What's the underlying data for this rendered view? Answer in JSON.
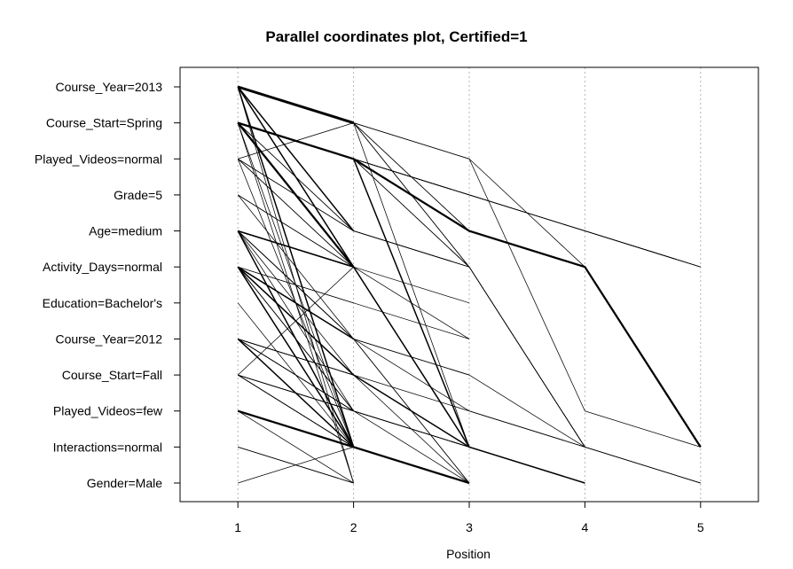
{
  "chart_data": {
    "type": "parallel-coordinates",
    "title": "Parallel coordinates plot, Certified=1",
    "xlabel": "Position",
    "ylabel": "",
    "xlim": [
      0.5,
      5.5
    ],
    "x_ticks": [
      1,
      2,
      3,
      4,
      5
    ],
    "y_categories": [
      "Course_Year=2013",
      "Course_Start=Spring",
      "Played_Videos=normal",
      "Grade=5",
      "Age=medium",
      "Activity_Days=normal",
      "Education=Bachelor's",
      "Course_Year=2012",
      "Course_Start=Fall",
      "Played_Videos=few",
      "Interactions=normal",
      "Gender=Male"
    ],
    "grid": {
      "vertical_dotted": true
    },
    "lines": [
      {
        "path": [
          0,
          1
        ],
        "weight": 4
      },
      {
        "path": [
          0,
          4
        ],
        "weight": 2
      },
      {
        "path": [
          0,
          5
        ],
        "weight": 2
      },
      {
        "path": [
          0,
          10
        ],
        "weight": 2
      },
      {
        "path": [
          0,
          11
        ],
        "weight": 1
      },
      {
        "path": [
          1,
          4
        ],
        "weight": 1
      },
      {
        "path": [
          1,
          5
        ],
        "weight": 1
      },
      {
        "path": [
          1,
          2
        ],
        "weight": 1
      },
      {
        "path": [
          2,
          5
        ],
        "weight": 1
      },
      {
        "path": [
          3,
          5
        ],
        "weight": 1
      },
      {
        "path": [
          3,
          7
        ],
        "weight": 1
      },
      {
        "path": [
          4,
          5
        ],
        "weight": 2
      },
      {
        "path": [
          4,
          7
        ],
        "weight": 1
      },
      {
        "path": [
          4,
          8
        ],
        "weight": 1
      },
      {
        "path": [
          5,
          7
        ],
        "weight": 2
      },
      {
        "path": [
          5,
          6
        ],
        "weight": 1
      },
      {
        "path": [
          5,
          9
        ],
        "weight": 1
      },
      {
        "path": [
          7,
          9
        ],
        "weight": 1
      },
      {
        "path": [
          7,
          8
        ],
        "weight": 1
      },
      {
        "path": [
          8,
          5
        ],
        "weight": 1
      },
      {
        "path": [
          8,
          9
        ],
        "weight": 1
      },
      {
        "path": [
          1,
          2,
          10,
          11
        ],
        "weight": 2
      },
      {
        "path": [
          1,
          5
        ],
        "weight": 3
      },
      {
        "path": [
          1,
          10,
          11
        ],
        "weight": 1
      },
      {
        "path": [
          1,
          11
        ],
        "weight": 1
      },
      {
        "path": [
          2,
          1,
          4
        ],
        "weight": 1
      },
      {
        "path": [
          3,
          5,
          10
        ],
        "weight": 1
      },
      {
        "path": [
          4,
          7,
          11
        ],
        "weight": 1
      },
      {
        "path": [
          4,
          5,
          7
        ],
        "weight": 1
      },
      {
        "path": [
          5,
          9
        ],
        "weight": 1
      },
      {
        "path": [
          5,
          8,
          11
        ],
        "weight": 1
      },
      {
        "path": [
          5,
          6,
          7
        ],
        "weight": 1
      },
      {
        "path": [
          7,
          9,
          10
        ],
        "weight": 1
      },
      {
        "path": [
          7,
          8,
          10
        ],
        "weight": 1
      },
      {
        "path": [
          8,
          10
        ],
        "weight": 1
      },
      {
        "path": [
          9,
          10,
          11
        ],
        "weight": 3
      },
      {
        "path": [
          10,
          11
        ],
        "weight": 1
      },
      {
        "path": [
          11,
          10
        ],
        "weight": 1
      },
      {
        "path": [
          4,
          10
        ],
        "weight": 2
      },
      {
        "path": [
          5,
          10
        ],
        "weight": 2
      },
      {
        "path": [
          2,
          10
        ],
        "weight": 1
      },
      {
        "path": [
          7,
          10
        ],
        "weight": 2
      },
      {
        "path": [
          9,
          11
        ],
        "weight": 1
      },
      {
        "path": [
          8,
          10,
          11
        ],
        "weight": 1
      },
      {
        "path": [
          2,
          4,
          5
        ],
        "weight": 1
      },
      {
        "path": [
          4,
          5,
          6
        ],
        "weight": 1
      },
      {
        "path": [
          4,
          7,
          8
        ],
        "weight": 1
      },
      {
        "path": [
          5,
          8,
          10
        ],
        "weight": 2
      },
      {
        "path": [
          4,
          5,
          10
        ],
        "weight": 2
      },
      {
        "path": [
          8,
          9,
          10
        ],
        "weight": 1
      },
      {
        "path": [
          9,
          10,
          11
        ],
        "weight": 1
      },
      {
        "path": [
          2,
          5,
          10
        ],
        "weight": 1
      },
      {
        "path": [
          6,
          10
        ],
        "weight": 1
      },
      {
        "path": [
          4,
          5
        ],
        "weight": 1
      },
      {
        "path": [
          4,
          10,
          11
        ],
        "weight": 1
      },
      {
        "path": [
          5,
          10,
          11
        ],
        "weight": 1
      },
      {
        "path": [
          5,
          7,
          11
        ],
        "weight": 1
      },
      {
        "path": [
          7,
          8
        ],
        "weight": 1
      },
      {
        "path": [
          7,
          9,
          10
        ],
        "weight": 1
      },
      {
        "path": [
          8,
          10
        ],
        "weight": 1
      },
      {
        "path": [
          4,
          10
        ],
        "weight": 1
      },
      {
        "path": [
          9,
          10
        ],
        "weight": 1
      },
      {
        "path": [
          4,
          9
        ],
        "weight": 1
      },
      {
        "path": [
          5,
          10
        ],
        "weight": 1
      },
      {
        "path": [
          7,
          8
        ],
        "weight": 1
      },
      {
        "path": [
          10,
          11
        ],
        "weight": 1
      },
      {
        "path": [
          4,
          10
        ],
        "weight": 1
      },
      {
        "path": [
          5,
          8
        ],
        "weight": 1
      },
      {
        "path": [
          8,
          10
        ],
        "weight": 1
      },
      {
        "path": [
          4,
          5,
          10,
          11
        ],
        "weight": 1
      },
      {
        "path": [
          5,
          8,
          10
        ],
        "weight": 1
      },
      {
        "path": [
          1,
          2,
          3,
          4,
          5
        ],
        "weight": 1
      },
      {
        "path": [
          1,
          2,
          5,
          10
        ],
        "weight": 1
      },
      {
        "path": [
          1,
          2,
          3,
          4,
          5
        ],
        "weight": 1
      },
      {
        "path": [
          1,
          2,
          3,
          4,
          5
        ],
        "weight": 1
      },
      {
        "path": [
          1,
          2,
          3,
          4,
          5
        ],
        "weight": 1
      },
      {
        "path": [
          1,
          2,
          4,
          5,
          10
        ],
        "weight": 3
      },
      {
        "path": [
          2,
          4,
          5
        ],
        "weight": 1
      },
      {
        "path": [
          0,
          1,
          5,
          10,
          11
        ],
        "weight": 1
      },
      {
        "path": [
          0,
          1,
          4,
          5,
          10
        ],
        "weight": 1
      },
      {
        "path": [
          0,
          1,
          2,
          9,
          10
        ],
        "weight": 1
      },
      {
        "path": [
          0,
          1,
          2,
          5,
          10
        ],
        "weight": 1
      },
      {
        "path": [
          0,
          1,
          10
        ],
        "weight": 1
      },
      {
        "path": [
          0,
          1,
          5
        ],
        "weight": 1
      },
      {
        "path": [
          1,
          2,
          5,
          10
        ],
        "weight": 1
      },
      {
        "path": [
          1,
          4,
          5,
          10,
          11
        ],
        "weight": 1
      },
      {
        "path": [
          4,
          5,
          10,
          11
        ],
        "weight": 1
      },
      {
        "path": [
          5,
          7,
          8,
          10,
          11
        ],
        "weight": 1
      },
      {
        "path": [
          5,
          7,
          9,
          10
        ],
        "weight": 1
      },
      {
        "path": [
          5,
          9,
          11
        ],
        "weight": 1
      },
      {
        "path": [
          5,
          8,
          9,
          10
        ],
        "weight": 1
      },
      {
        "path": [
          7,
          9,
          10,
          11
        ],
        "weight": 1
      },
      {
        "path": [
          8,
          9,
          10
        ],
        "weight": 1
      }
    ]
  }
}
